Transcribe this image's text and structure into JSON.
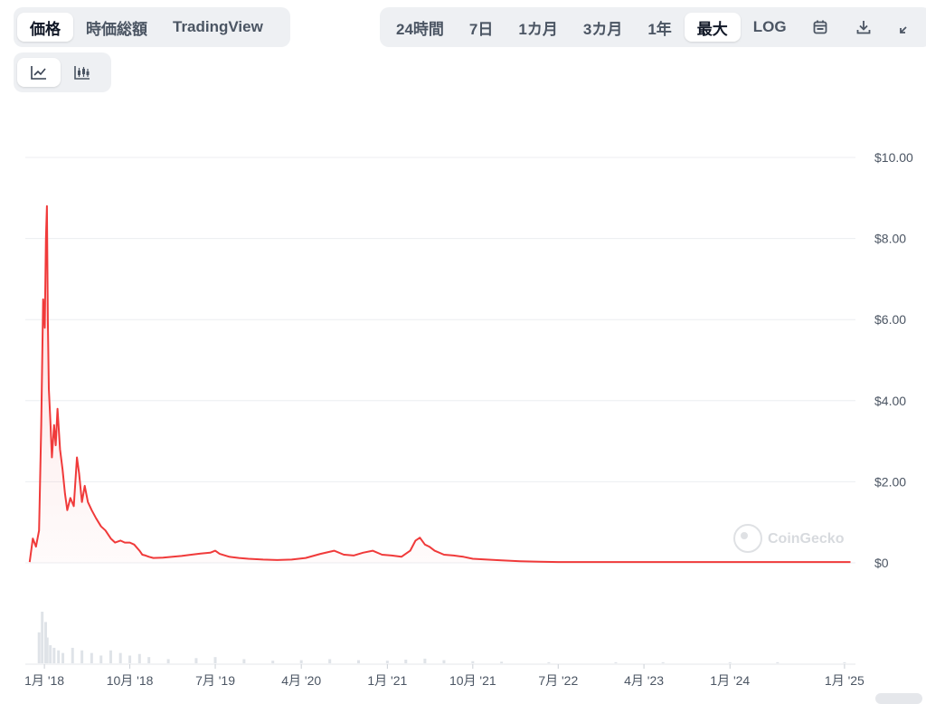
{
  "view_tabs": [
    {
      "label": "価格",
      "active": true
    },
    {
      "label": "時価総額",
      "active": false
    },
    {
      "label": "TradingView",
      "active": false
    }
  ],
  "range_tabs": [
    {
      "label": "24時間",
      "active": false
    },
    {
      "label": "7日",
      "active": false
    },
    {
      "label": "1カ月",
      "active": false
    },
    {
      "label": "3カ月",
      "active": false
    },
    {
      "label": "1年",
      "active": false
    },
    {
      "label": "最大",
      "active": true
    },
    {
      "label": "LOG",
      "active": false
    }
  ],
  "toolbar_icons": [
    "calendar-icon",
    "download-icon",
    "expand-icon"
  ],
  "chart_type_icons": [
    {
      "name": "line-chart-icon",
      "active": true
    },
    {
      "name": "candlestick-icon",
      "active": false
    }
  ],
  "watermark": "CoinGecko",
  "colors": {
    "line": "#f03a3a",
    "fill": "#fde8e8",
    "grid": "#eceef1",
    "volume": "#dfe3e8",
    "axis_text": "#4b5563"
  },
  "chart_data": {
    "type": "line",
    "title": "",
    "xlabel": "",
    "ylabel": "",
    "ylim": [
      0,
      10
    ],
    "y_ticks": [
      "$10.00",
      "$8.00",
      "$6.00",
      "$4.00",
      "$2.00",
      "$0"
    ],
    "x_ticks": [
      "1月 '18",
      "10月 '18",
      "7月 '19",
      "4月 '20",
      "1月 '21",
      "10月 '21",
      "7月 '22",
      "4月 '23",
      "1月 '24",
      "1月 '25"
    ],
    "grid": true,
    "legend": "none",
    "series": [
      {
        "x": [
          "2017-11-15",
          "2017-11-25",
          "2017-12-05",
          "2017-12-15",
          "2017-12-22",
          "2017-12-28",
          "2018-01-02",
          "2018-01-06",
          "2018-01-09",
          "2018-01-12",
          "2018-01-15",
          "2018-01-20",
          "2018-01-25",
          "2018-02-01",
          "2018-02-06",
          "2018-02-12",
          "2018-02-20",
          "2018-02-28",
          "2018-03-08",
          "2018-03-15",
          "2018-03-25",
          "2018-04-05",
          "2018-04-15",
          "2018-04-22",
          "2018-05-01",
          "2018-05-10",
          "2018-05-20",
          "2018-06-01",
          "2018-06-15",
          "2018-07-01",
          "2018-07-15",
          "2018-08-01",
          "2018-08-15",
          "2018-09-01",
          "2018-09-15",
          "2018-10-01",
          "2018-10-15",
          "2018-11-01",
          "2018-11-10",
          "2018-11-20",
          "2018-12-01",
          "2018-12-15",
          "2019-01-15",
          "2019-02-15",
          "2019-03-15",
          "2019-04-15",
          "2019-05-15",
          "2019-06-15",
          "2019-07-01",
          "2019-07-15",
          "2019-08-15",
          "2019-09-15",
          "2019-10-15",
          "2019-12-01",
          "2020-01-15",
          "2020-03-01",
          "2020-04-15",
          "2020-06-01",
          "2020-07-15",
          "2020-08-15",
          "2020-09-15",
          "2020-10-15",
          "2020-11-15",
          "2020-12-15",
          "2021-01-15",
          "2021-02-15",
          "2021-03-15",
          "2021-04-01",
          "2021-04-15",
          "2021-05-01",
          "2021-05-15",
          "2021-06-01",
          "2021-07-01",
          "2021-08-01",
          "2021-09-01",
          "2021-10-01",
          "2021-11-15",
          "2022-01-01",
          "2022-03-01",
          "2022-05-01",
          "2022-07-01",
          "2022-10-01",
          "2023-01-01",
          "2023-04-01",
          "2023-07-01",
          "2023-10-01",
          "2024-01-01",
          "2024-04-01",
          "2024-07-01",
          "2024-10-01",
          "2025-01-01",
          "2025-01-20"
        ],
        "values": [
          0.02,
          0.6,
          0.4,
          0.8,
          3.4,
          6.5,
          5.8,
          8.0,
          8.8,
          6.0,
          4.3,
          3.5,
          2.6,
          3.4,
          2.9,
          3.8,
          2.8,
          2.3,
          1.7,
          1.3,
          1.6,
          1.4,
          2.6,
          2.2,
          1.5,
          1.9,
          1.5,
          1.3,
          1.1,
          0.9,
          0.8,
          0.6,
          0.5,
          0.55,
          0.5,
          0.5,
          0.45,
          0.3,
          0.2,
          0.18,
          0.15,
          0.12,
          0.13,
          0.15,
          0.17,
          0.2,
          0.23,
          0.25,
          0.3,
          0.22,
          0.15,
          0.12,
          0.1,
          0.08,
          0.07,
          0.08,
          0.12,
          0.22,
          0.3,
          0.2,
          0.18,
          0.25,
          0.3,
          0.2,
          0.18,
          0.15,
          0.3,
          0.55,
          0.62,
          0.45,
          0.4,
          0.3,
          0.2,
          0.18,
          0.15,
          0.1,
          0.08,
          0.06,
          0.04,
          0.03,
          0.02,
          0.02,
          0.02,
          0.02,
          0.02,
          0.02,
          0.02,
          0.02,
          0.02,
          0.02,
          0.02,
          0.02
        ]
      }
    ],
    "volume": {
      "x": [
        "2017-12-15",
        "2017-12-25",
        "2018-01-05",
        "2018-01-10",
        "2018-01-20",
        "2018-02-01",
        "2018-02-15",
        "2018-03-01",
        "2018-04-01",
        "2018-05-01",
        "2018-06-01",
        "2018-07-01",
        "2018-08-01",
        "2018-09-01",
        "2018-10-01",
        "2018-11-01",
        "2018-12-01",
        "2019-02-01",
        "2019-05-01",
        "2019-07-01",
        "2019-10-01",
        "2020-01-01",
        "2020-04-01",
        "2020-07-01",
        "2020-10-01",
        "2021-01-01",
        "2021-03-01",
        "2021-05-01",
        "2021-07-01",
        "2021-10-01",
        "2022-01-01",
        "2022-06-01",
        "2023-01-01",
        "2023-06-01",
        "2024-01-01",
        "2024-06-01",
        "2025-01-01"
      ],
      "values": [
        0.6,
        1.0,
        0.8,
        0.5,
        0.35,
        0.3,
        0.25,
        0.2,
        0.3,
        0.25,
        0.2,
        0.15,
        0.25,
        0.2,
        0.15,
        0.18,
        0.12,
        0.08,
        0.1,
        0.12,
        0.08,
        0.05,
        0.06,
        0.08,
        0.06,
        0.05,
        0.07,
        0.09,
        0.06,
        0.04,
        0.03,
        0.02,
        0.02,
        0.02,
        0.02,
        0.02,
        0.02
      ]
    }
  }
}
